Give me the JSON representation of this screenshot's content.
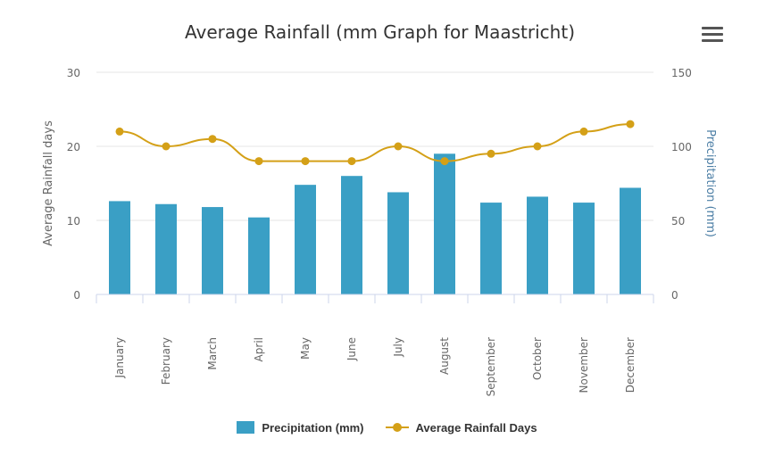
{
  "title": "Average Rainfall (mm Graph for Maastricht)",
  "menu_icon": "hamburger-menu-icon",
  "colors": {
    "bars": "#3a9fc5",
    "line": "#d4a017",
    "grid": "#e6e6e6",
    "axis_label": "#666666",
    "right_axis_title": "#4d7fa6"
  },
  "chart_data": {
    "type": "bar",
    "categories": [
      "January",
      "February",
      "March",
      "April",
      "May",
      "June",
      "July",
      "August",
      "September",
      "October",
      "November",
      "December"
    ],
    "series": [
      {
        "name": "Precipitation (mm)",
        "type": "bar",
        "axis": "right",
        "values": [
          63,
          61,
          59,
          52,
          74,
          80,
          69,
          95,
          62,
          66,
          62,
          72
        ]
      },
      {
        "name": "Average Rainfall Days",
        "type": "line",
        "axis": "left",
        "values": [
          22,
          20,
          21,
          18,
          18,
          18,
          20,
          18,
          19,
          20,
          22,
          23
        ]
      }
    ],
    "ylabel_left": "Average Rainfall days",
    "ylabel_right": "Precipitation (mm)",
    "ylim_left": [
      0,
      30
    ],
    "yticks_left": [
      "0",
      "10",
      "20",
      "30"
    ],
    "ylim_right": [
      0,
      150
    ],
    "yticks_right": [
      "0",
      "50",
      "100",
      "150"
    ],
    "grid": true,
    "legend_position": "bottom-center"
  }
}
